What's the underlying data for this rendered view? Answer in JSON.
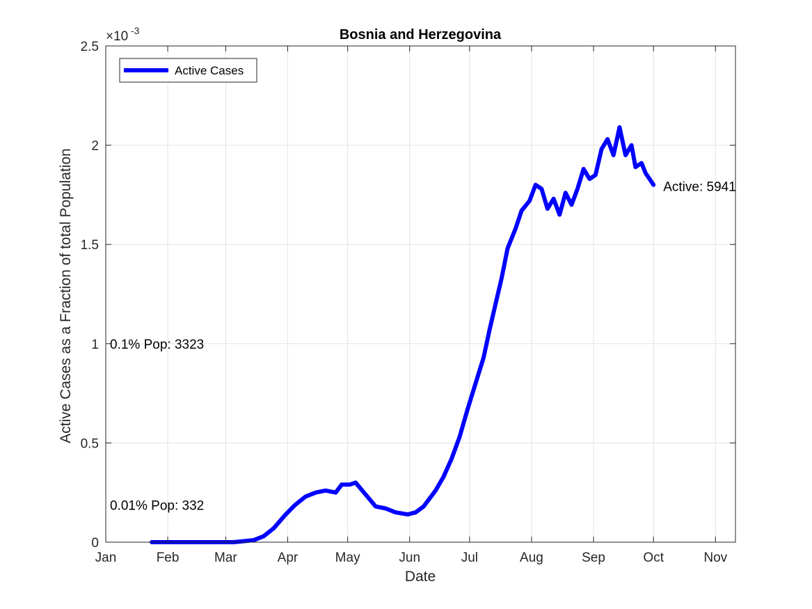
{
  "chart_data": {
    "type": "line",
    "title": "Bosnia and Herzegovina",
    "xlabel": "Date",
    "ylabel": "Active Cases as a Fraction of total Population",
    "y_exponent_label": "×10",
    "y_exponent_power": "-3",
    "ylim": [
      0,
      0.0025
    ],
    "y_ticks": [
      0,
      0.0005,
      0.001,
      0.0015,
      0.002,
      0.0025
    ],
    "y_tick_labels": [
      "0",
      "0.5",
      "1",
      "1.5",
      "2",
      "2.5"
    ],
    "x_ticks": [
      "Jan",
      "Feb",
      "Mar",
      "Apr",
      "May",
      "Jun",
      "Jul",
      "Aug",
      "Sep",
      "Oct",
      "Nov"
    ],
    "grid": true,
    "legend": {
      "placement": "top-left",
      "entries": [
        "Active Cases"
      ]
    },
    "series": [
      {
        "name": "Active Cases",
        "color": "#0000ff",
        "x": [
          "2020-01-24",
          "2020-02-15",
          "2020-03-05",
          "2020-03-15",
          "2020-03-20",
          "2020-03-25",
          "2020-03-31",
          "2020-04-05",
          "2020-04-10",
          "2020-04-15",
          "2020-04-20",
          "2020-04-25",
          "2020-04-28",
          "2020-05-02",
          "2020-05-05",
          "2020-05-10",
          "2020-05-15",
          "2020-05-20",
          "2020-05-25",
          "2020-05-31",
          "2020-06-04",
          "2020-06-08",
          "2020-06-14",
          "2020-06-18",
          "2020-06-22",
          "2020-06-26",
          "2020-06-30",
          "2020-07-04",
          "2020-07-08",
          "2020-07-11",
          "2020-07-14",
          "2020-07-17",
          "2020-07-20",
          "2020-07-24",
          "2020-07-27",
          "2020-07-31",
          "2020-08-03",
          "2020-08-06",
          "2020-08-09",
          "2020-08-12",
          "2020-08-15",
          "2020-08-18",
          "2020-08-21",
          "2020-08-24",
          "2020-08-27",
          "2020-08-30",
          "2020-09-02",
          "2020-09-05",
          "2020-09-08",
          "2020-09-11",
          "2020-09-14",
          "2020-09-17",
          "2020-09-20",
          "2020-09-22",
          "2020-09-25",
          "2020-09-27",
          "2020-09-29",
          "2020-10-01"
        ],
        "values": [
          0,
          0,
          0,
          1e-05,
          3e-05,
          7e-05,
          0.00014,
          0.00019,
          0.00023,
          0.00025,
          0.00026,
          0.00025,
          0.00029,
          0.00029,
          0.0003,
          0.00024,
          0.00018,
          0.00017,
          0.00015,
          0.00014,
          0.00015,
          0.00018,
          0.00026,
          0.00033,
          0.00042,
          0.00053,
          0.00067,
          0.0008,
          0.00093,
          0.00107,
          0.0012,
          0.00133,
          0.00148,
          0.00158,
          0.00167,
          0.00172,
          0.0018,
          0.00178,
          0.00168,
          0.00173,
          0.00165,
          0.00176,
          0.0017,
          0.00178,
          0.00188,
          0.00183,
          0.00185,
          0.00198,
          0.00203,
          0.00195,
          0.00209,
          0.00195,
          0.002,
          0.00189,
          0.00191,
          0.00186,
          0.00183,
          0.0018
        ]
      }
    ],
    "annotations": [
      {
        "text": "0.01% Pop: 332",
        "x": "2020-01-01",
        "y": 0.0001
      },
      {
        "text": "0.1% Pop: 3323",
        "x": "2020-01-01",
        "y": 0.001
      },
      {
        "text": "Active: 5941",
        "x": "2020-10-01",
        "y": 0.0018
      }
    ]
  }
}
